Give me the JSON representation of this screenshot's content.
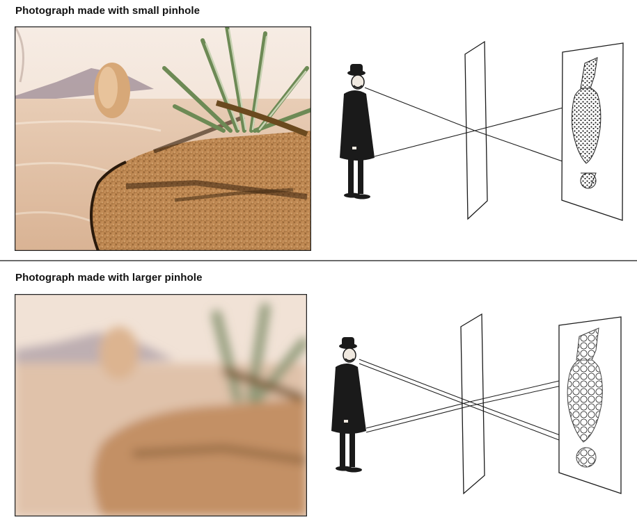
{
  "figure": {
    "top_panel": {
      "caption": "Photograph made with small pinhole"
    },
    "bottom_panel": {
      "caption": "Photograph made with larger pinhole"
    }
  },
  "colors": {
    "caption_text": "#111111",
    "divider": "#6b6b6b",
    "sky": "#f3e4d6",
    "sand": "#c9905a",
    "ink": "#1a1a1a"
  }
}
